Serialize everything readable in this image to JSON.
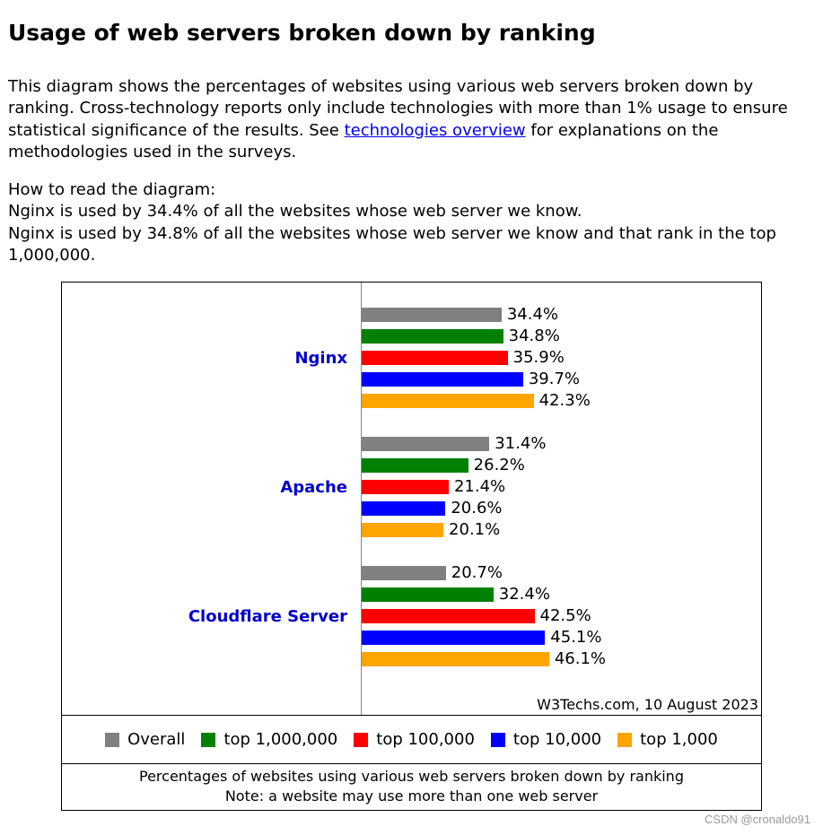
{
  "title": "Usage of web servers broken down by ranking",
  "intro": {
    "before_link": "This diagram shows the percentages of websites using various web servers broken down by ranking. Cross-technology reports only include technologies with more than 1% usage to ensure statistical significance of the results. See ",
    "link": "technologies overview",
    "after_link": " for explanations on the methodologies used in the surveys."
  },
  "how_to": {
    "heading": "How to read the diagram:",
    "line1": "Nginx is used by 34.4% of all the websites whose web server we know.",
    "line2": "Nginx is used by 34.8% of all the websites whose web server we know and that rank in the top 1,000,000."
  },
  "watermark": "CSDN @cronaldo91",
  "chart_data": {
    "type": "bar",
    "orientation": "horizontal",
    "categories": [
      "Nginx",
      "Apache",
      "Cloudflare Server"
    ],
    "series": [
      {
        "name": "Overall",
        "color": "#808080",
        "values": [
          34.4,
          31.4,
          20.7
        ]
      },
      {
        "name": "top 1,000,000",
        "color": "#008000",
        "values": [
          34.8,
          26.2,
          32.4
        ]
      },
      {
        "name": "top 100,000",
        "color": "#ff0000",
        "values": [
          35.9,
          21.4,
          42.5
        ]
      },
      {
        "name": "top 10,000",
        "color": "#0000ff",
        "values": [
          39.7,
          20.6,
          45.1
        ]
      },
      {
        "name": "top 1,000",
        "color": "#ffa500",
        "values": [
          42.3,
          20.1,
          46.1
        ]
      }
    ],
    "value_suffix": "%",
    "credit": "W3Techs.com, 10 August 2023",
    "legend_placement": "bottom",
    "caption_line1": "Percentages of websites using various web servers broken down by ranking",
    "caption_line2": "Note: a website may use more than one web server"
  }
}
